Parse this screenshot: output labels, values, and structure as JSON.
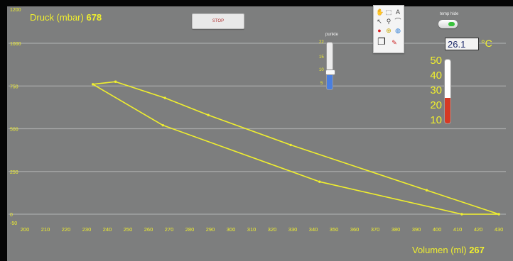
{
  "pressure_readout": {
    "label": "Druck  (mbar)",
    "value": "678"
  },
  "volume_readout": {
    "label": "Volumen (ml)",
    "value": "267"
  },
  "stop_button": {
    "label": "STOP"
  },
  "temp_toggle": {
    "label": "temp hide",
    "led_color": "#39c23c"
  },
  "temperature": {
    "value": "26.1",
    "unit": "°C",
    "scale": [
      "50",
      "40",
      "30",
      "20",
      "10"
    ],
    "level": 26.1,
    "min": 10,
    "max": 50
  },
  "punkte": {
    "label": "punkte",
    "scale": [
      "22",
      "15",
      "10",
      "5"
    ],
    "value": 9,
    "min": 0,
    "max": 25
  },
  "tool_palette": {
    "icons": [
      "hand-icon",
      "select-icon",
      "text-icon",
      "pointer-icon",
      "wiring-icon",
      "brush-icon",
      "breakpoint-icon",
      "probe-icon",
      "color-icon",
      "shadow-box-icon",
      "pencil-icon"
    ]
  },
  "colors": {
    "trace": "#f0ef2e",
    "panel": "#7d7e7e",
    "grid": "#a9aaaa",
    "thermo_fill": "#d63a24",
    "slider_fill": "#4a7fe0"
  },
  "chart_data": {
    "type": "line",
    "xlabel": "Volumen (ml)",
    "ylabel": "Druck  (mbar)",
    "xlim": [
      200,
      431
    ],
    "ylim": [
      -50,
      1200
    ],
    "x_ticks": [
      200,
      210,
      220,
      230,
      240,
      250,
      260,
      270,
      280,
      290,
      300,
      310,
      320,
      330,
      340,
      350,
      360,
      370,
      380,
      390,
      400,
      410,
      420,
      430
    ],
    "y_ticks": [
      {
        "value": 1200,
        "label": "1200"
      },
      {
        "value": 1000,
        "label": "1000"
      },
      {
        "value": 750,
        "label": "750"
      },
      {
        "value": 500,
        "label": "500"
      },
      {
        "value": 250,
        "label": "250"
      },
      {
        "value": 0,
        "label": "0"
      },
      {
        "value": -50,
        "label": "-50"
      }
    ],
    "grid": true,
    "series": [
      {
        "x": [
          244,
          233,
          267,
          343,
          412,
          430,
          395,
          329,
          289,
          268,
          244
        ],
        "y": [
          775,
          760,
          520,
          190,
          0,
          0,
          140,
          405,
          580,
          680,
          775
        ]
      }
    ]
  }
}
